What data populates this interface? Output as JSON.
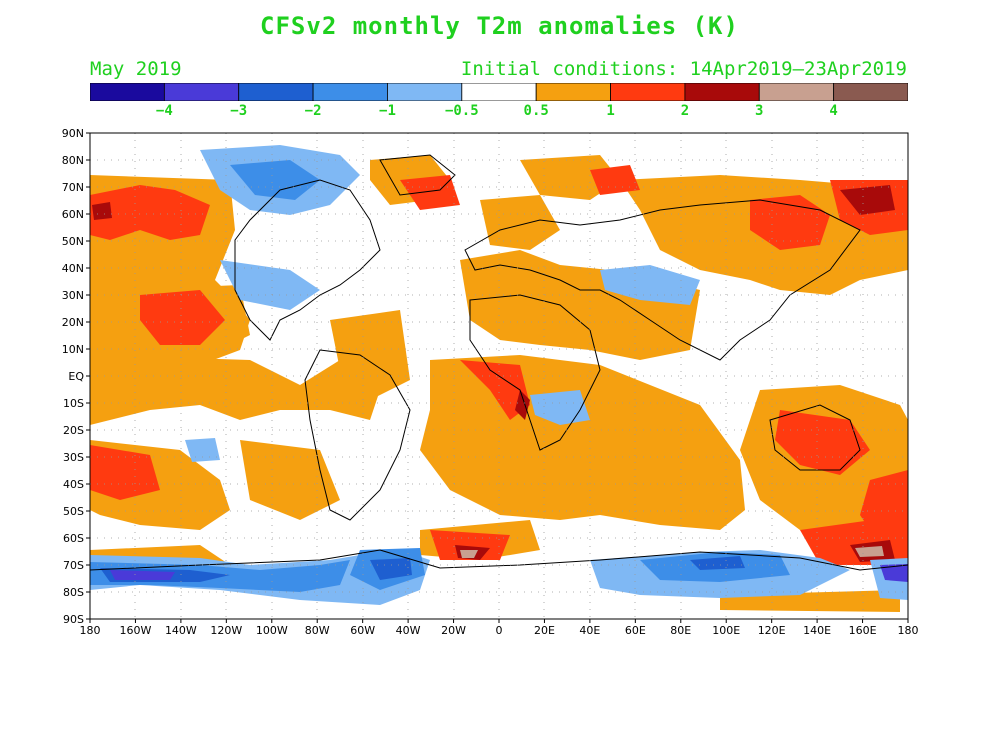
{
  "title": "CFSv2 monthly T2m anomalies (K)",
  "valid_month": "May 2019",
  "initial_conditions": "Initial conditions: 14Apr2019–23Apr2019",
  "colorbar": {
    "colors": [
      "#1a0a9e",
      "#4a3ad8",
      "#1e5fd0",
      "#3d8ee8",
      "#7fb8f4",
      "#ffffff",
      "#f5a010",
      "#ff3a10",
      "#a80a0a",
      "#c8a090",
      "#8a5a50"
    ],
    "labels": [
      "−4",
      "−3",
      "−2",
      "−1",
      "−0.5",
      "0.5",
      "1",
      "2",
      "3",
      "4"
    ]
  },
  "lat_labels": [
    "90N",
    "80N",
    "70N",
    "60N",
    "50N",
    "40N",
    "30N",
    "20N",
    "10N",
    "EQ",
    "10S",
    "20S",
    "30S",
    "40S",
    "50S",
    "60S",
    "70S",
    "80S",
    "90S"
  ],
  "lon_labels": [
    "180",
    "160W",
    "140W",
    "120W",
    "100W",
    "80W",
    "60W",
    "40W",
    "20W",
    "0",
    "20E",
    "40E",
    "60E",
    "80E",
    "100E",
    "120E",
    "140E",
    "160E",
    "180"
  ],
  "text_color": "#1fd01f"
}
